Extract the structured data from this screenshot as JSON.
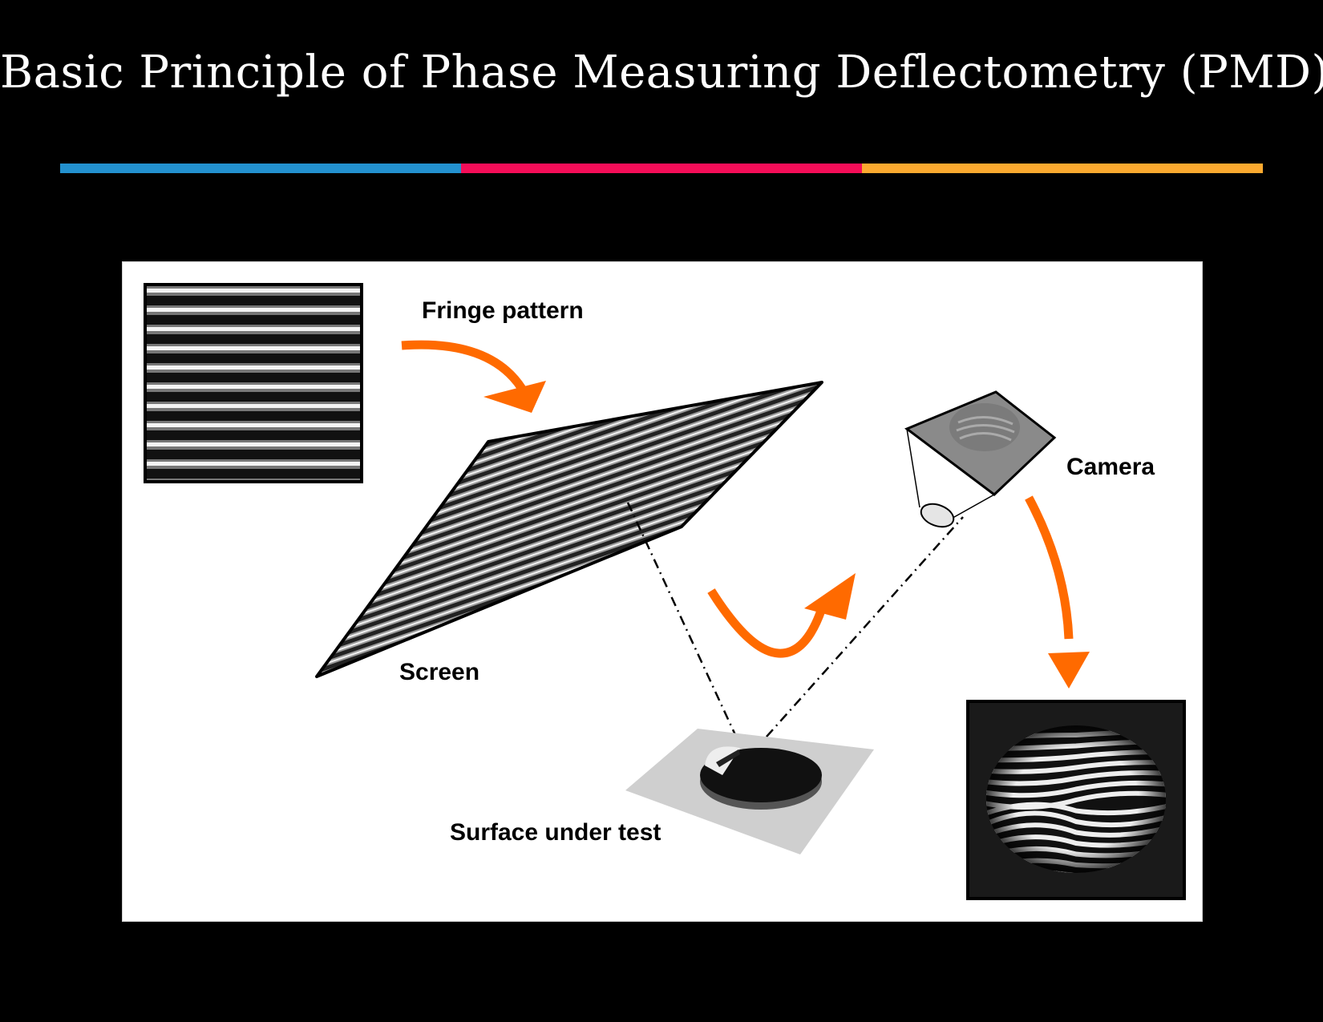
{
  "title": "Basic Principle of Phase Measuring Deflectometry (PMD)",
  "accent_colors": [
    "#2391cf",
    "#f50d58",
    "#fba92f"
  ],
  "arrow_color": "#ff6a00",
  "labels": {
    "fringe_pattern": "Fringe pattern",
    "screen": "Screen",
    "camera": "Camera",
    "surface_under_test": "Surface under test"
  }
}
